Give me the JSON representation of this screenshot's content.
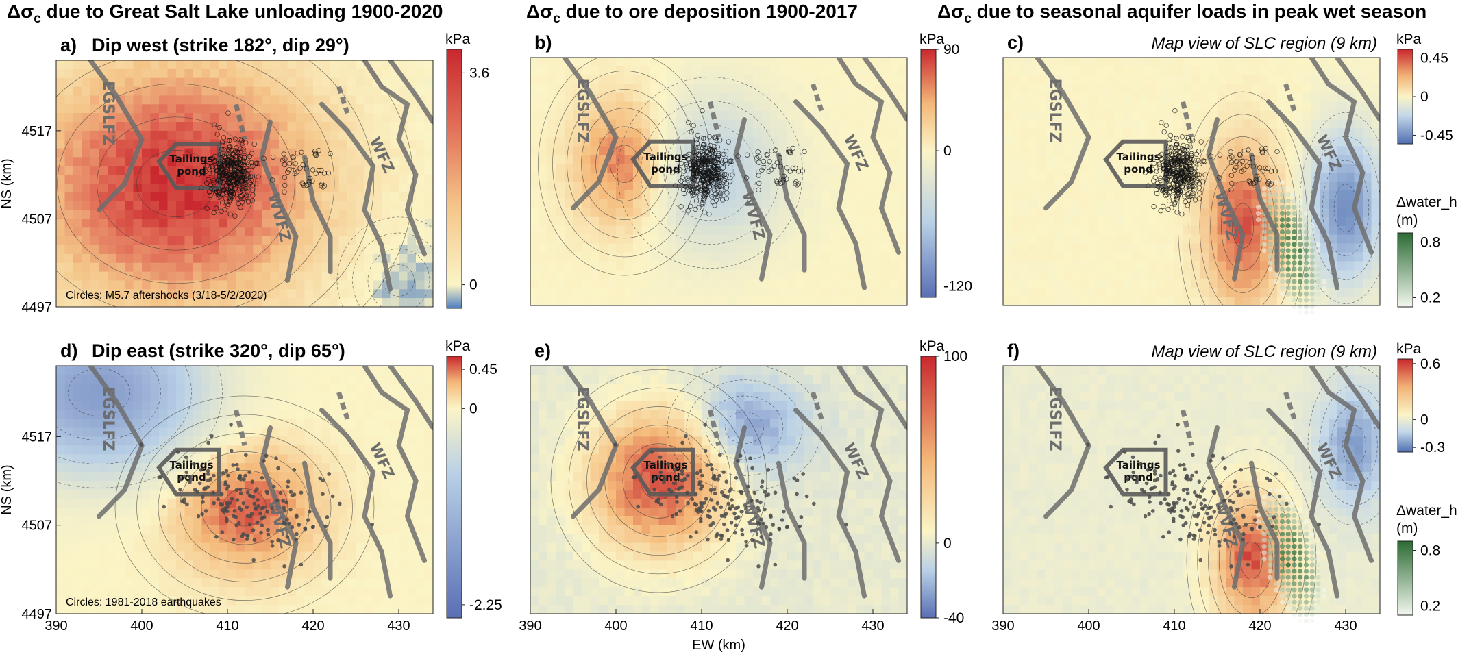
{
  "figure": {
    "column_titles": [
      "Δσ|c| due to Great Salt Lake unloading 1900-2020",
      "Δσ|c| due to ore deposition 1900-2017",
      "Δσ|c| due to seasonal aquifer loads in peak wet season"
    ]
  },
  "colors": {
    "stress_red": "#c9282e",
    "stress_neutral": "#fbf4c6",
    "stress_blue": "#5a6fb3",
    "water_green": "#2c6b34",
    "water_light": "#f2f7ee",
    "fault": "#6d6d6d",
    "neg_blue": "#b9d0e6"
  },
  "chart_data": [
    {
      "id": "a",
      "type": "heatmap",
      "panel_label": "a)",
      "title": "Dip west (strike 182°, dip 29°)",
      "xlim": [
        390,
        434
      ],
      "ylim": [
        4497,
        4525
      ],
      "x_ticks": [],
      "y_ticks": [
        4497,
        4507,
        4517
      ],
      "ylabel": "NS (km)",
      "xlabel": "",
      "colorbar": {
        "unit": "kPa",
        "min": -0.4,
        "max": 4.0,
        "ticks": [
          3.6,
          0
        ],
        "ticklabels": [
          "3.6",
          "0"
        ],
        "colors": [
          "#4f7fbf",
          "#fbf4c6",
          "#f4c488",
          "#e06a55",
          "#c9282e"
        ],
        "stops": [
          0,
          0.09,
          0.4,
          0.72,
          1
        ]
      },
      "fault_labels": [
        "EGSLFZ",
        "WVFZ",
        "WFZ"
      ],
      "pond_label": "Tailings\npond",
      "note": "Circles: M5.7 aftershocks (3/18-5/2/2020)",
      "field": {
        "peak_value": 3.8,
        "peak_x": 404,
        "peak_y": 4511,
        "sx": 11,
        "sy": 9,
        "neg_value": -0.3,
        "neg_x": 430,
        "neg_y": 4500
      }
    },
    {
      "id": "b",
      "type": "heatmap",
      "panel_label": "b)",
      "title": "",
      "xlim": [
        390,
        434
      ],
      "ylim": [
        4497,
        4525
      ],
      "x_ticks": [],
      "y_ticks": [],
      "ylabel": "",
      "xlabel": "",
      "colorbar": {
        "unit": "kPa",
        "min": -130,
        "max": 90,
        "ticks": [
          90,
          0,
          -120
        ],
        "ticklabels": [
          "90",
          "0",
          "-120"
        ],
        "colors": [
          "#5a6fb3",
          "#b9d0e6",
          "#fbf4c6",
          "#f4b878",
          "#c9282e"
        ],
        "stops": [
          0,
          0.3,
          0.59,
          0.78,
          1
        ]
      },
      "fault_labels": [
        "EGSLFZ",
        "WVFZ",
        "WFZ"
      ],
      "pond_label": "Tailings\npond",
      "note": "",
      "field": {
        "peak_value": 70,
        "peak_x": 401,
        "peak_y": 4513,
        "sx": 4,
        "sy": 5,
        "neg_value": -60,
        "neg_x": 411,
        "neg_y": 4512,
        "nsx": 6,
        "nsy": 6
      }
    },
    {
      "id": "c",
      "type": "heatmap",
      "panel_label": "c)",
      "title": "Map view of SLC region (9 km)",
      "xlim": [
        390,
        434
      ],
      "ylim": [
        4497,
        4525
      ],
      "x_ticks": [],
      "y_ticks": [],
      "ylabel": "",
      "xlabel": "",
      "colorbar": {
        "unit": "kPa",
        "min": -0.55,
        "max": 0.55,
        "ticks": [
          0.45,
          0,
          -0.45
        ],
        "ticklabels": [
          "0.45",
          "0",
          "-0.45"
        ],
        "colors": [
          "#4f6fb0",
          "#c4d8ea",
          "#fbf4c6",
          "#f1b277",
          "#c9282e"
        ],
        "stops": [
          0,
          0.3,
          0.5,
          0.72,
          1
        ]
      },
      "colorbar2": {
        "unit": "Δwater_h\n(m)",
        "ticks": [
          0.8,
          0.2
        ],
        "ticklabels": [
          "0.8",
          "0.2"
        ]
      },
      "fault_labels": [
        "EGSLFZ",
        "WVFZ",
        "WFZ"
      ],
      "pond_label": "Tailings\npond",
      "note": "",
      "field": {
        "peak_value": 0.45,
        "peak_x": 418,
        "peak_y": 4506,
        "sx": 3,
        "sy": 6,
        "neg_value": -0.45,
        "neg_x": 430,
        "neg_y": 4508,
        "nsx": 3,
        "nsy": 6
      }
    },
    {
      "id": "d",
      "type": "heatmap",
      "panel_label": "d)",
      "title": "Dip east (strike 320°, dip 65°)",
      "xlim": [
        390,
        434
      ],
      "ylim": [
        4497,
        4525
      ],
      "x_ticks": [
        390,
        400,
        410,
        420,
        430
      ],
      "y_ticks": [
        4497,
        4507,
        4517
      ],
      "ylabel": "NS (km)",
      "xlabel": "",
      "colorbar": {
        "unit": "kPa",
        "min": -2.4,
        "max": 0.6,
        "ticks": [
          0.45,
          0,
          -2.25
        ],
        "ticklabels": [
          "0.45",
          "0",
          "-2.25"
        ],
        "colors": [
          "#5a6fb3",
          "#b9d0e6",
          "#fbf4c6",
          "#f4b878",
          "#c9282e"
        ],
        "stops": [
          0,
          0.55,
          0.8,
          0.9,
          1
        ]
      },
      "fault_labels": [
        "EGSLFZ",
        "WVFZ",
        "WFZ"
      ],
      "pond_label": "Tailings\npond",
      "note": "Circles: 1981-2018 earthquakes",
      "field": {
        "peak_value": 0.5,
        "peak_x": 412,
        "peak_y": 4509,
        "sx": 6,
        "sy": 5,
        "neg_value": -1.6,
        "neg_x": 395,
        "neg_y": 4522,
        "nsx": 8,
        "nsy": 6
      }
    },
    {
      "id": "e",
      "type": "heatmap",
      "panel_label": "e)",
      "title": "",
      "xlim": [
        390,
        434
      ],
      "ylim": [
        4497,
        4525
      ],
      "x_ticks": [
        390,
        400,
        410,
        420,
        430
      ],
      "y_ticks": [],
      "ylabel": "",
      "xlabel": "EW (km)",
      "colorbar": {
        "unit": "kPa",
        "min": -40,
        "max": 100,
        "ticks": [
          100,
          0,
          -40
        ],
        "ticklabels": [
          "100",
          "0",
          "-40"
        ],
        "colors": [
          "#5a6fb3",
          "#b9d0e6",
          "#fbf4c6",
          "#f4b878",
          "#c9282e"
        ],
        "stops": [
          0,
          0.18,
          0.33,
          0.6,
          1
        ]
      },
      "fault_labels": [
        "EGSLFZ",
        "WVFZ",
        "WFZ"
      ],
      "pond_label": "Tailings\npond",
      "note": "",
      "field": {
        "peak_value": 85,
        "peak_x": 405,
        "peak_y": 4512,
        "sx": 5,
        "sy": 5,
        "neg_value": -28,
        "neg_x": 415,
        "neg_y": 4518,
        "nsx": 5,
        "nsy": 4
      }
    },
    {
      "id": "f",
      "type": "heatmap",
      "panel_label": "f)",
      "title": "Map view of SLC region (9 km)",
      "xlim": [
        390,
        434
      ],
      "ylim": [
        4497,
        4525
      ],
      "x_ticks": [
        390,
        400,
        410,
        420,
        430
      ],
      "y_ticks": [],
      "ylabel": "",
      "xlabel": "",
      "colorbar": {
        "unit": "kPa",
        "min": -0.35,
        "max": 0.65,
        "ticks": [
          0.6,
          0,
          -0.3
        ],
        "ticklabels": [
          "0.6",
          "0",
          "-0.3"
        ],
        "colors": [
          "#4f6fb0",
          "#c4d8ea",
          "#fbf4c6",
          "#f1b277",
          "#c9282e"
        ],
        "stops": [
          0,
          0.22,
          0.4,
          0.7,
          1
        ]
      },
      "colorbar2": {
        "unit": "Δwater_h\n(m)",
        "ticks": [
          0.8,
          0.2
        ],
        "ticklabels": [
          "0.8",
          "0.2"
        ]
      },
      "fault_labels": [
        "EGSLFZ",
        "WVFZ",
        "WFZ"
      ],
      "pond_label": "Tailings\npond",
      "note": "",
      "field": {
        "peak_value": 0.55,
        "peak_x": 419,
        "peak_y": 4503,
        "sx": 3,
        "sy": 5,
        "neg_value": -0.25,
        "neg_x": 431,
        "neg_y": 4516,
        "nsx": 3,
        "nsy": 5
      }
    }
  ]
}
